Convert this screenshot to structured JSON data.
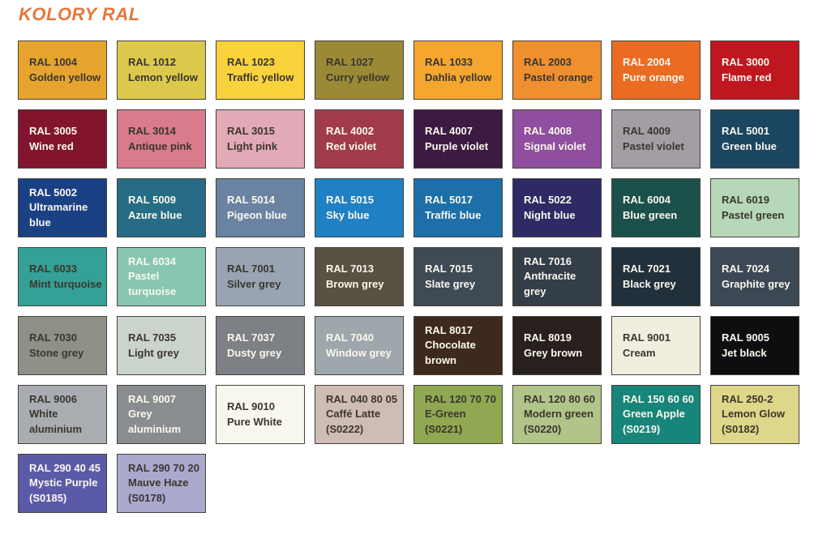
{
  "page": {
    "title": "KOLORY RAL",
    "title_color": "#E8763C",
    "background": "#FFFFFF",
    "dark_text": "#3B362F",
    "light_text": "#FBF8EE",
    "border_color": "#46423C"
  },
  "chart_data": {
    "type": "table",
    "title": "KOLORY RAL",
    "columns": 8,
    "legend_position": "none",
    "swatches": [
      {
        "code": "RAL 1004",
        "name": "Golden yellow",
        "hex": "#E6A42F",
        "text": "dark"
      },
      {
        "code": "RAL 1012",
        "name": "Lemon yellow",
        "hex": "#DCC94B",
        "text": "dark"
      },
      {
        "code": "RAL 1023",
        "name": "Traffic yellow",
        "hex": "#F8D33C",
        "text": "dark"
      },
      {
        "code": "RAL 1027",
        "name": "Curry yellow",
        "hex": "#9A8A36",
        "text": "dark"
      },
      {
        "code": "RAL 1033",
        "name": "Dahlia yellow",
        "hex": "#F4A62F",
        "text": "dark"
      },
      {
        "code": "RAL 2003",
        "name": "Pastel orange",
        "hex": "#F08F2E",
        "text": "dark"
      },
      {
        "code": "RAL 2004",
        "name": "Pure orange",
        "hex": "#EC6B23",
        "text": "light"
      },
      {
        "code": "RAL 3000",
        "name": "Flame red",
        "hex": "#C0161F",
        "text": "light"
      },
      {
        "code": "RAL 3005",
        "name": "Wine red",
        "hex": "#83142E",
        "text": "light"
      },
      {
        "code": "RAL 3014",
        "name": "Antique pink",
        "hex": "#D97B8C",
        "text": "dark"
      },
      {
        "code": "RAL 3015",
        "name": "Light pink",
        "hex": "#E2A9B6",
        "text": "dark"
      },
      {
        "code": "RAL 4002",
        "name": "Red violet",
        "hex": "#A23B49",
        "text": "light"
      },
      {
        "code": "RAL 4007",
        "name": "Purple violet",
        "hex": "#3C1A42",
        "text": "light"
      },
      {
        "code": "RAL 4008",
        "name": "Signal violet",
        "hex": "#8F4E9F",
        "text": "light"
      },
      {
        "code": "RAL 4009",
        "name": "Pastel violet",
        "hex": "#A49DA4",
        "text": "dark"
      },
      {
        "code": "RAL 5001",
        "name": "Green blue",
        "hex": "#1A4662",
        "text": "light"
      },
      {
        "code": "RAL 5002",
        "name": "Ultramarine blue",
        "hex": "#1A4183",
        "text": "light"
      },
      {
        "code": "RAL 5009",
        "name": "Azure blue",
        "hex": "#266C84",
        "text": "light"
      },
      {
        "code": "RAL 5014",
        "name": "Pigeon blue",
        "hex": "#6B83A3",
        "text": "light"
      },
      {
        "code": "RAL 5015",
        "name": "Sky blue",
        "hex": "#1F80C3",
        "text": "light"
      },
      {
        "code": "RAL 5017",
        "name": "Traffic blue",
        "hex": "#1C6FA8",
        "text": "light"
      },
      {
        "code": "RAL 5022",
        "name": "Night blue",
        "hex": "#2D2A65",
        "text": "light"
      },
      {
        "code": "RAL 6004",
        "name": "Blue green",
        "hex": "#1C514B",
        "text": "light"
      },
      {
        "code": "RAL 6019",
        "name": "Pastel green",
        "hex": "#B7D8B8",
        "text": "dark"
      },
      {
        "code": "RAL 6033",
        "name": "Mint turquoise",
        "hex": "#35A095",
        "text": "dark"
      },
      {
        "code": "RAL 6034",
        "name": "Pastel turquoise",
        "hex": "#88C6B3",
        "text": "light"
      },
      {
        "code": "RAL 7001",
        "name": "Silver grey",
        "hex": "#98A4B1",
        "text": "dark"
      },
      {
        "code": "RAL 7013",
        "name": "Brown grey",
        "hex": "#595141",
        "text": "light"
      },
      {
        "code": "RAL 7015",
        "name": "Slate grey",
        "hex": "#3E4A54",
        "text": "light"
      },
      {
        "code": "RAL 7016",
        "name": "Anthracite grey",
        "hex": "#343E48",
        "text": "light"
      },
      {
        "code": "RAL 7021",
        "name": "Black grey",
        "hex": "#21303B",
        "text": "light"
      },
      {
        "code": "RAL 7024",
        "name": "Graphite grey",
        "hex": "#3C4854",
        "text": "light"
      },
      {
        "code": "RAL 7030",
        "name": "Stone grey",
        "hex": "#8D9187",
        "text": "dark"
      },
      {
        "code": "RAL 7035",
        "name": "Light grey",
        "hex": "#CBD3CD",
        "text": "dark"
      },
      {
        "code": "RAL 7037",
        "name": "Dusty grey",
        "hex": "#7D8085",
        "text": "light"
      },
      {
        "code": "RAL 7040",
        "name": "Window grey",
        "hex": "#9DA7AC",
        "text": "light"
      },
      {
        "code": "RAL 8017",
        "name": "Chocolate brown",
        "hex": "#3E2A1C",
        "text": "light"
      },
      {
        "code": "RAL 8019",
        "name": "Grey brown",
        "hex": "#27201D",
        "text": "light"
      },
      {
        "code": "RAL 9001",
        "name": "Cream",
        "hex": "#F0EEDF",
        "text": "dark"
      },
      {
        "code": "RAL 9005",
        "name": "Jet black",
        "hex": "#0C0E10",
        "text": "light"
      },
      {
        "code": "RAL 9006",
        "name": "White aluminium",
        "hex": "#A9ADB2",
        "text": "dark"
      },
      {
        "code": "RAL 9007",
        "name": "Grey aluminium",
        "hex": "#898D90",
        "text": "light"
      },
      {
        "code": "RAL 9010",
        "name": "Pure White",
        "hex": "#F8F7EE",
        "text": "dark"
      },
      {
        "code": "RAL 040 80 05",
        "name": "Caffé Latte",
        "suffix": "(S0222)",
        "hex": "#CFBCB5",
        "text": "dark"
      },
      {
        "code": "RAL 120 70 70",
        "name": "E-Green",
        "suffix": "(S0221)",
        "hex": "#8FA851",
        "text": "dark"
      },
      {
        "code": "RAL 120 80 60",
        "name": "Modern green",
        "suffix": "(S0220)",
        "hex": "#B1C489",
        "text": "dark"
      },
      {
        "code": "RAL 150 60 60",
        "name": "Green Apple",
        "suffix": "(S0219)",
        "hex": "#17857A",
        "text": "light"
      },
      {
        "code": "RAL 250-2",
        "name": "Lemon Glow",
        "suffix": "(S0182)",
        "hex": "#DED688",
        "text": "dark"
      },
      {
        "code": "RAL 290 40 45",
        "name": "Mystic Purple",
        "suffix": "(S0185)",
        "hex": "#5B5AA9",
        "text": "light"
      },
      {
        "code": "RAL 290 70 20",
        "name": "Mauve Haze",
        "suffix": "(S0178)",
        "hex": "#ABA8CE",
        "text": "dark"
      }
    ]
  }
}
